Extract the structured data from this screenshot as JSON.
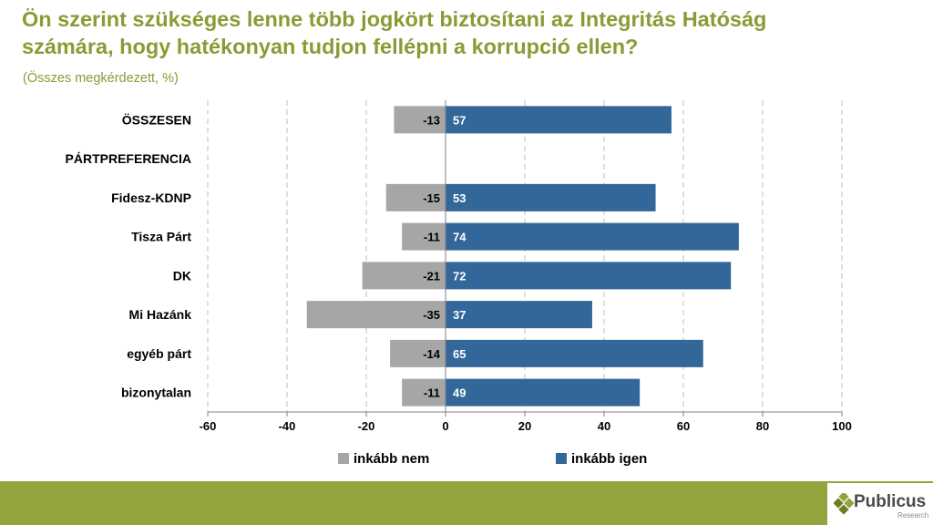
{
  "title_lines": [
    "Ön szerint szükséges lenne több jogkört biztosítani az Integritás Hatóság",
    "számára, hogy hatékonyan tudjon fellépni a korrupció ellen?"
  ],
  "subtitle": "(Összes megkérdezett, %)",
  "chart_data": {
    "type": "bar",
    "orientation": "horizontal",
    "stacked": true,
    "title": "Ön szerint szükséges lenne több jogkört biztosítani az Integritás Hatóság számára, hogy hatékonyan tudjon fellépni a korrupció ellen?",
    "categories": [
      "ÖSSZESEN",
      "PÁRTPREFERENCIA",
      "Fidesz-KDNP",
      "Tisza Párt",
      "DK",
      "Mi Hazánk",
      "egyéb párt",
      "bizonytalan"
    ],
    "series": [
      {
        "name": "inkább nem",
        "color": "#a6a6a6",
        "values": [
          -13,
          null,
          -15,
          -11,
          -21,
          -35,
          -14,
          -11
        ]
      },
      {
        "name": "inkább igen",
        "color": "#336699",
        "values": [
          57,
          null,
          53,
          74,
          72,
          37,
          65,
          49
        ]
      }
    ],
    "xlim": [
      -60,
      100
    ],
    "xticks": [
      -60,
      -40,
      -20,
      0,
      20,
      40,
      60,
      80,
      100
    ],
    "gridlines": true,
    "legend": "bottom"
  },
  "logo": {
    "name": "Publicus",
    "sub": "Research"
  },
  "colors": {
    "accent": "#8a9b35",
    "footer": "#95a33c",
    "neg": "#a6a6a6",
    "pos": "#336699"
  }
}
